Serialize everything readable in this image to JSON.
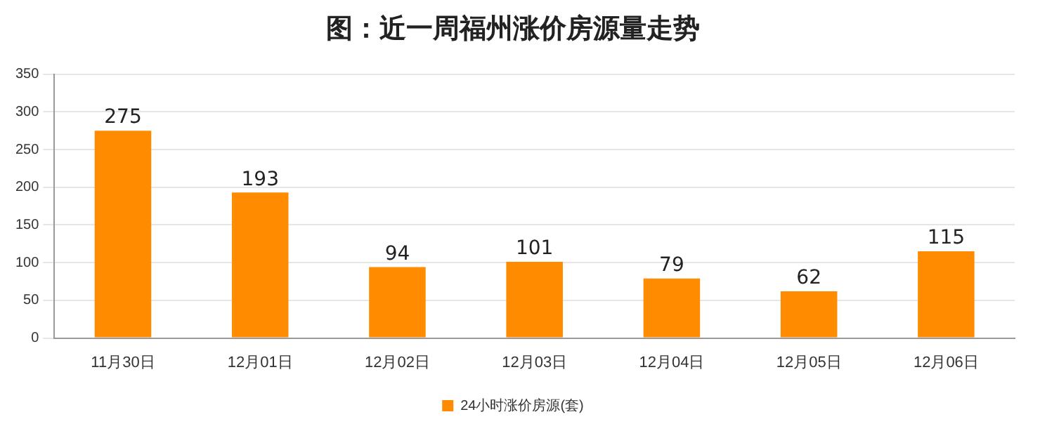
{
  "chart_data": {
    "type": "bar",
    "title": "图：近一周福州涨价房源量走势",
    "categories": [
      "11月30日",
      "12月01日",
      "12月02日",
      "12月03日",
      "12月04日",
      "12月05日",
      "12月06日"
    ],
    "series": [
      {
        "name": "24小时涨价房源(套)",
        "color": "#ff8c00",
        "values": [
          275,
          193,
          94,
          101,
          79,
          62,
          115
        ]
      }
    ],
    "ylim": [
      0,
      350
    ],
    "yticks": [
      0,
      50,
      100,
      150,
      200,
      250,
      300,
      350
    ],
    "grid": "y",
    "legend": "bottom",
    "data_labels": true
  }
}
